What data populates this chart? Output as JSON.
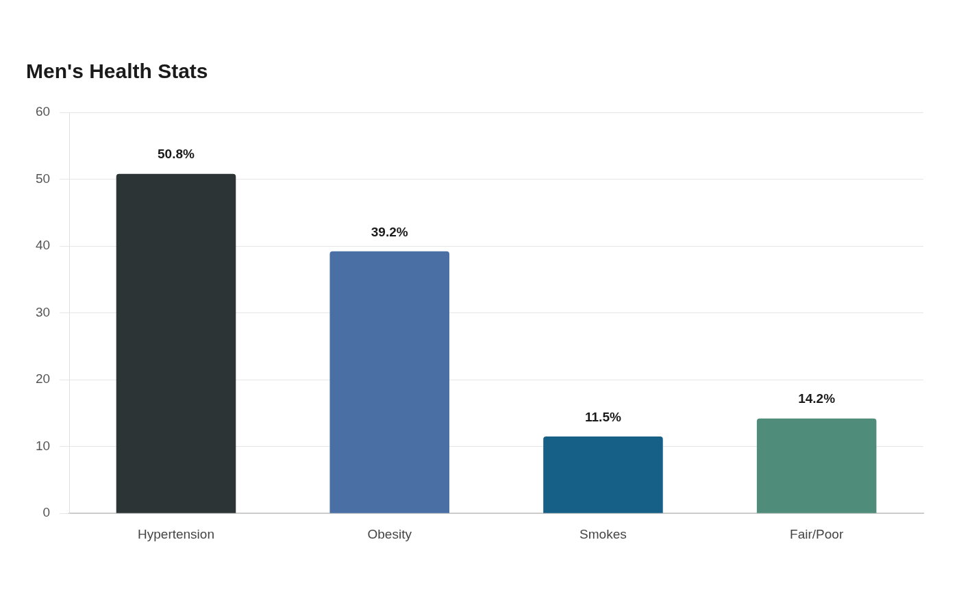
{
  "chart_data": {
    "type": "bar",
    "title": "Men's Health Stats",
    "categories": [
      "Hypertension",
      "Obesity",
      "Smokes",
      "Fair/Poor"
    ],
    "values": [
      50.8,
      39.2,
      11.5,
      14.2
    ],
    "colors": [
      "#2d3436",
      "#4a6fa5",
      "#166088",
      "#4f8c7a"
    ],
    "value_labels": [
      "50.8%",
      "39.2%",
      "11.5%",
      "14.2%"
    ],
    "ylim": [
      0,
      60
    ],
    "yticks": [
      0,
      10,
      20,
      30,
      40,
      50,
      60
    ],
    "grid": "y",
    "legend": false
  }
}
